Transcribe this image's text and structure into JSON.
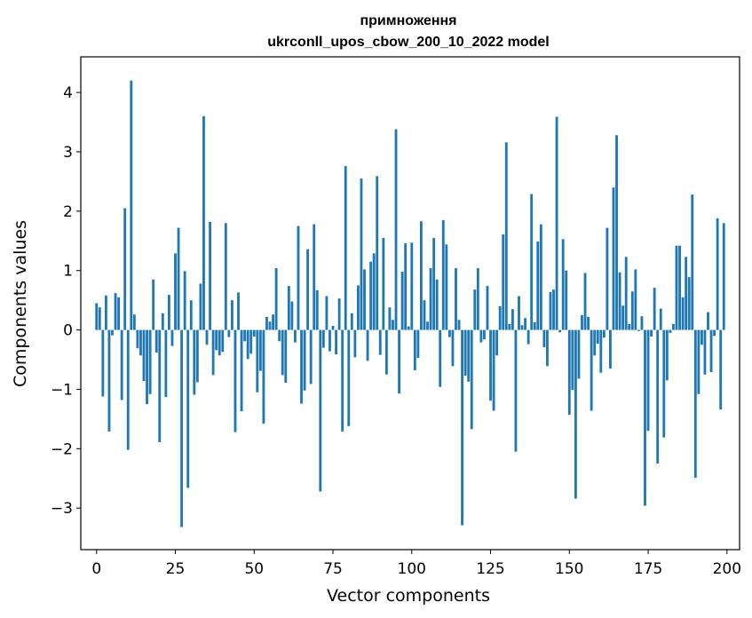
{
  "chart_data": {
    "type": "bar",
    "title": "примноження",
    "subtitle": "ukrconll_upos_cbow_200_10_2022 model",
    "xlabel": "Vector components",
    "ylabel": "Components values",
    "xlim": [
      -5,
      204
    ],
    "ylim": [
      -3.7,
      4.6
    ],
    "xticks": [
      0,
      25,
      50,
      75,
      100,
      125,
      150,
      175,
      200
    ],
    "yticks": [
      -3,
      -2,
      -1,
      0,
      1,
      2,
      3,
      4
    ],
    "ytick_labels": [
      "−3",
      "−2",
      "−1",
      "0",
      "1",
      "2",
      "3",
      "4"
    ],
    "bar_color": "#1f77b4",
    "values": [
      0.45,
      0.38,
      -1.12,
      0.58,
      -1.71,
      -0.09,
      0.62,
      0.55,
      -1.18,
      2.05,
      -2.02,
      4.2,
      0.26,
      -0.31,
      -0.43,
      -0.86,
      -1.25,
      -1.08,
      0.85,
      -0.38,
      -1.89,
      0.28,
      -1.13,
      0.59,
      -0.27,
      1.29,
      1.72,
      -3.32,
      0.99,
      -2.66,
      0.5,
      -1.09,
      -0.88,
      0.78,
      3.6,
      -0.25,
      1.82,
      -0.76,
      -0.34,
      -0.43,
      -0.37,
      1.8,
      -0.12,
      0.5,
      -1.72,
      0.63,
      -1.37,
      -0.19,
      -0.49,
      -0.4,
      -0.11,
      -1.05,
      -0.69,
      -1.58,
      0.22,
      0.14,
      0.26,
      1.04,
      -0.19,
      -0.76,
      -0.89,
      0.74,
      0.48,
      -0.21,
      1.75,
      -1.24,
      -1.02,
      1.36,
      -0.91,
      1.78,
      0.67,
      -2.72,
      -0.3,
      0.57,
      -0.36,
      0.07,
      -0.41,
      0.53,
      -1.71,
      2.76,
      -1.62,
      0.28,
      -0.46,
      0.75,
      2.55,
      1.02,
      -0.52,
      1.15,
      1.29,
      2.59,
      -0.42,
      1.55,
      -0.75,
      0.38,
      0.17,
      3.38,
      -1.07,
      0.98,
      1.46,
      0.06,
      1.47,
      -0.68,
      -0.47,
      1.83,
      0.5,
      0.14,
      1.04,
      1.55,
      0.85,
      -0.96,
      1.85,
      1.44,
      -0.12,
      -0.61,
      1.04,
      0.17,
      -3.29,
      -0.77,
      -0.87,
      -1.67,
      0.68,
      1.04,
      -0.21,
      -0.16,
      0.74,
      -1.19,
      -1.36,
      -0.43,
      0.4,
      1.61,
      3.16,
      0.1,
      0.35,
      -2.05,
      0.57,
      0.08,
      0.2,
      -0.24,
      2.29,
      0.13,
      1.49,
      1.78,
      -0.29,
      -0.61,
      0.64,
      0.68,
      3.59,
      -0.04,
      1.53,
      1.0,
      -1.43,
      -1.01,
      -2.84,
      -0.82,
      0.25,
      0.96,
      0.22,
      -1.36,
      -0.43,
      -0.23,
      -0.72,
      -0.13,
      1.72,
      -0.65,
      2.4,
      3.28,
      0.97,
      0.41,
      1.23,
      0.1,
      0.65,
      1.02,
      -0.02,
      0.23,
      -2.96,
      -1.7,
      -0.11,
      0.71,
      -2.25,
      0.36,
      -1.81,
      -0.85,
      -0.05,
      0.1,
      1.42,
      1.42,
      0.55,
      1.23,
      0.89,
      2.28,
      -2.49,
      -1.08,
      -0.25,
      -0.75,
      0.3,
      -0.71,
      -0.1,
      1.88,
      -1.34,
      1.8
    ]
  }
}
